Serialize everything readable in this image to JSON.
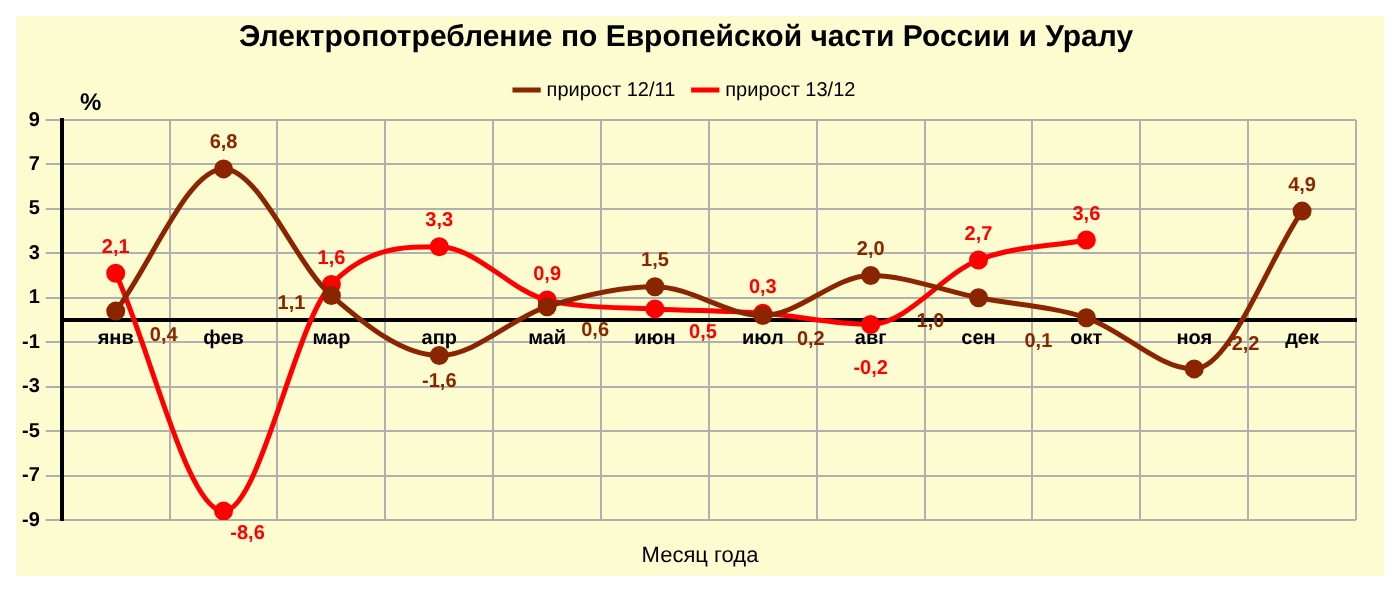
{
  "chart_data": {
    "type": "line",
    "title": "Электропотребление по Европейской части России и Уралу",
    "ylabel": "%",
    "xlabel": "Месяц года",
    "categories": [
      "янв",
      "фев",
      "мар",
      "апр",
      "май",
      "июн",
      "июл",
      "авг",
      "сен",
      "окт",
      "ноя",
      "дек"
    ],
    "series": [
      {
        "name": "прирост 12/11",
        "color": "#8b2500",
        "values": [
          0.4,
          6.8,
          1.1,
          -1.6,
          0.6,
          1.5,
          0.2,
          2.0,
          1.0,
          0.1,
          -2.2,
          4.9
        ],
        "value_labels": [
          "0,4",
          "6,8",
          "1,1",
          "-1,6",
          "0,6",
          "1,5",
          "0,2",
          "2,0",
          "1,0",
          "0,1",
          "-2,2",
          "4,9"
        ]
      },
      {
        "name": "прирост 13/12",
        "color": "#ff0000",
        "values": [
          2.1,
          -8.6,
          1.6,
          3.3,
          0.9,
          0.5,
          0.3,
          -0.2,
          2.7,
          3.6,
          null,
          null
        ],
        "value_labels": [
          "2,1",
          "-8,6",
          "1,6",
          "3,3",
          "0,9",
          "0,5",
          "0,3",
          "-0,2",
          "2,7",
          "3,6",
          null,
          null
        ]
      }
    ],
    "ylim": [
      -9,
      9
    ],
    "yticks": [
      -9,
      -7,
      -5,
      -3,
      -1,
      1,
      3,
      5,
      7,
      9
    ],
    "grid": true,
    "legend": "top",
    "marker": "circle",
    "line_style": "solid"
  }
}
